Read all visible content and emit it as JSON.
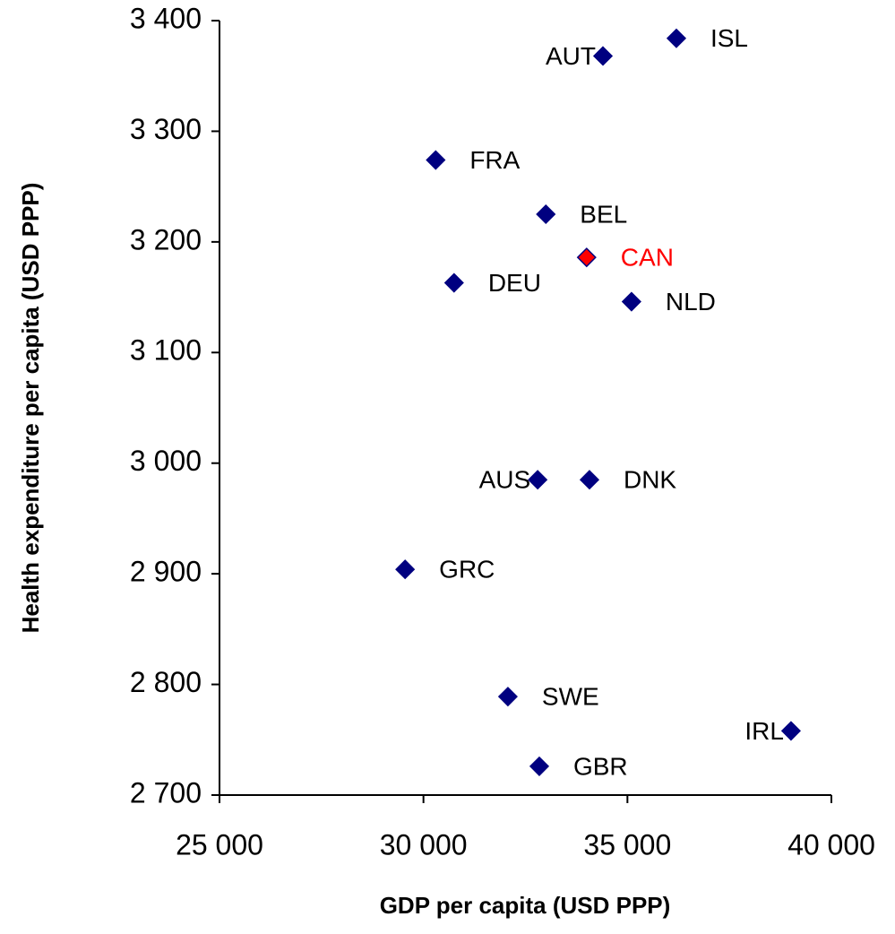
{
  "chart_data": {
    "type": "scatter",
    "x_label": "GDP per capita (USD PPP)",
    "y_label": "Health expenditure per capita (USD PPP)",
    "labels": [
      "ISL",
      "AUT",
      "FRA",
      "BEL",
      "CAN",
      "DEU",
      "NLD",
      "AUS",
      "DNK",
      "GRC",
      "SWE",
      "IRL",
      "GBR"
    ],
    "x": [
      36200,
      34400,
      30300,
      33000,
      34000,
      30750,
      35100,
      32800,
      34070,
      29550,
      32070,
      39010,
      32840
    ],
    "values": [
      3384,
      3368,
      3274,
      3225,
      3186,
      3163,
      3146,
      2985,
      2985,
      2904,
      2789,
      2758,
      2726
    ],
    "marker_colors": [
      "#000080",
      "#000080",
      "#000080",
      "#000080",
      "#ff0000",
      "#000080",
      "#000080",
      "#000080",
      "#000080",
      "#000080",
      "#000080",
      "#000080",
      "#000080"
    ],
    "label_colors": [
      "#000000",
      "#000000",
      "#000000",
      "#000000",
      "#ff0000",
      "#000000",
      "#000000",
      "#000000",
      "#000000",
      "#000000",
      "#000000",
      "#000000",
      "#000000"
    ],
    "xlim": [
      25000,
      40000
    ],
    "xticks": [
      {
        "value": 25000,
        "label": "25 000"
      },
      {
        "value": 30000,
        "label": "30 000"
      },
      {
        "value": 35000,
        "label": "35 000"
      },
      {
        "value": 40000,
        "label": "40 000"
      }
    ],
    "ylim": [
      2700,
      3400
    ],
    "yticks": [
      {
        "value": 2700,
        "label": "2 700"
      },
      {
        "value": 2800,
        "label": "2 800"
      },
      {
        "value": 2900,
        "label": "2 900"
      },
      {
        "value": 3000,
        "label": "3 000"
      },
      {
        "value": 3100,
        "label": "3 100"
      },
      {
        "value": 3200,
        "label": "3 200"
      },
      {
        "value": 3300,
        "label": "3 300"
      },
      {
        "value": 3400,
        "label": "3 400"
      }
    ],
    "grid": false
  }
}
